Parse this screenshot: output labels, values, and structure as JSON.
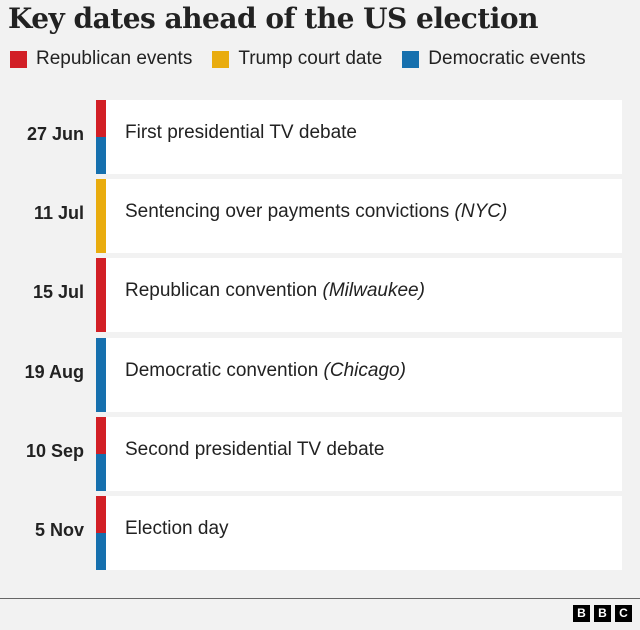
{
  "title": "Key dates ahead of the US election",
  "colors": {
    "republican": "#d21f26",
    "trump": "#e9ac0e",
    "democratic": "#1670ae"
  },
  "legend": [
    {
      "label": "Republican events",
      "color": "#d21f26"
    },
    {
      "label": "Trump court date",
      "color": "#e9ac0e"
    },
    {
      "label": "Democratic events",
      "color": "#1670ae"
    }
  ],
  "events": [
    {
      "date": "27 Jun",
      "label": "First presidential TV debate",
      "location": "",
      "colors": [
        "#d21f26",
        "#1670ae"
      ]
    },
    {
      "date": "11 Jul",
      "label": "Sentencing over payments convictions ",
      "location": "(NYC)",
      "colors": [
        "#e9ac0e"
      ]
    },
    {
      "date": "15 Jul",
      "label": "Republican convention ",
      "location": "(Milwaukee)",
      "colors": [
        "#d21f26"
      ]
    },
    {
      "date": "19 Aug",
      "label": "Democratic convention ",
      "location": "(Chicago)",
      "colors": [
        "#1670ae"
      ]
    },
    {
      "date": "10 Sep",
      "label": "Second presidential TV debate",
      "location": "",
      "colors": [
        "#d21f26",
        "#1670ae"
      ]
    },
    {
      "date": "5 Nov",
      "label": "Election day",
      "location": "",
      "colors": [
        "#d21f26",
        "#1670ae"
      ]
    }
  ],
  "logo": [
    "B",
    "B",
    "C"
  ]
}
